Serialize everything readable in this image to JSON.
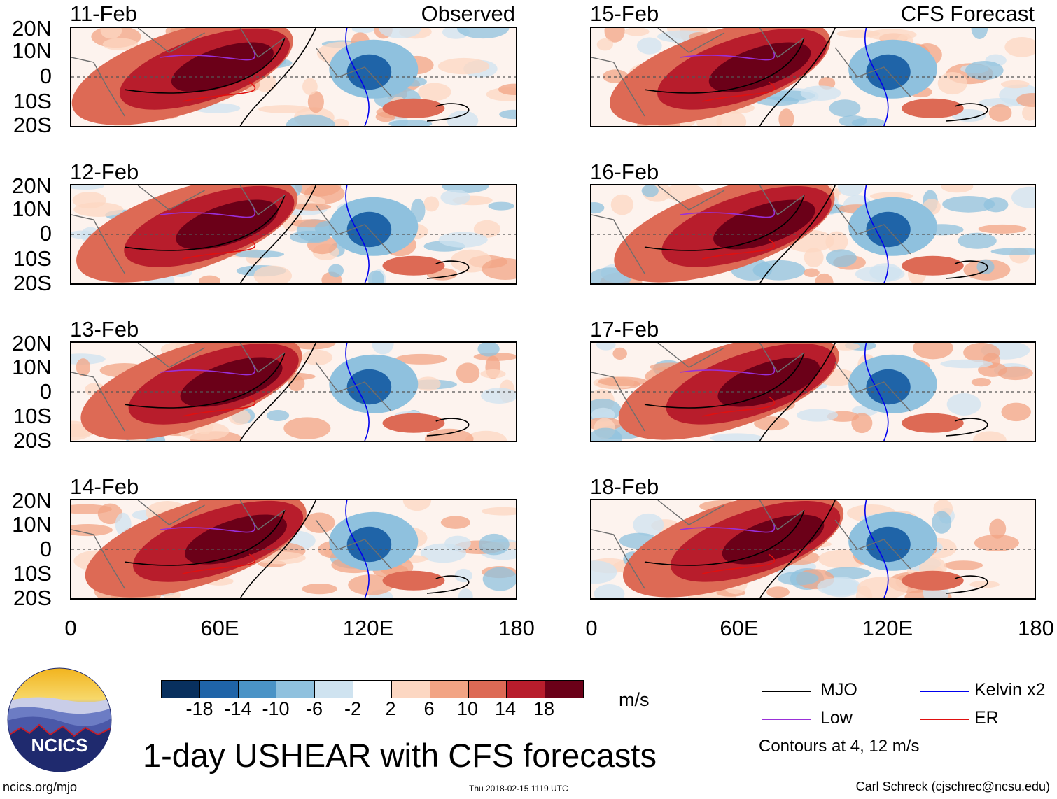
{
  "left_header": "Observed",
  "right_header": "CFS Forecast",
  "panels": [
    {
      "date": "11-Feb",
      "column": "observed"
    },
    {
      "date": "12-Feb",
      "column": "observed"
    },
    {
      "date": "13-Feb",
      "column": "observed"
    },
    {
      "date": "14-Feb",
      "column": "observed"
    },
    {
      "date": "15-Feb",
      "column": "forecast"
    },
    {
      "date": "16-Feb",
      "column": "forecast"
    },
    {
      "date": "17-Feb",
      "column": "forecast"
    },
    {
      "date": "18-Feb",
      "column": "forecast"
    }
  ],
  "lat_labels": [
    "20N",
    "10N",
    "0",
    "10S",
    "20S"
  ],
  "lon_labels": [
    "0",
    "60E",
    "120E",
    "180"
  ],
  "colorbar": {
    "colors": [
      "#08305e",
      "#1f64a8",
      "#4a93c6",
      "#8fc1de",
      "#cfe3f0",
      "#ffffff",
      "#fcd7c2",
      "#f2a484",
      "#dd6a55",
      "#b81d2c",
      "#6b0018"
    ],
    "ticks": [
      "-18",
      "-14",
      "-10",
      "-6",
      "-2",
      "2",
      "6",
      "10",
      "14",
      "18"
    ],
    "units": "m/s"
  },
  "legend": [
    {
      "label": "MJO",
      "color": "#000000"
    },
    {
      "label": "Kelvin x2",
      "color": "#0000ee"
    },
    {
      "label": "Low",
      "color": "#9a30d8"
    },
    {
      "label": "ER",
      "color": "#e01010"
    }
  ],
  "contour_note": "Contours at 4, 12 m/s",
  "title": "1-day USHEAR with CFS forecasts",
  "logo_text": "NCICS",
  "footer": {
    "website": "ncics.org/mjo",
    "timestamp": "Thu 2018-02-15 1119 UTC",
    "credit": "Carl Schreck (cjschrec@ncsu.edu)"
  }
}
